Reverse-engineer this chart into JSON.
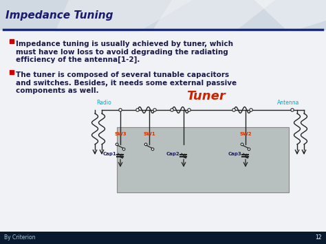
{
  "title": "Impedance Tuning",
  "title_color": "#1a1a6e",
  "title_fontsize": 11,
  "bullet_color": "#cc0000",
  "bullet_text_color": "#1a1a4a",
  "bullet_fontsize": 7.5,
  "bullet1": "Impedance tuning is usually achieved by tuner, which\nmust have low loss to avoid degrading the radiating\nefficiency of the antenna[1-2].",
  "bullet2": "The tuner is composed of several tunable capacitors\nand switches. Besides, it needs some external passive\ncomponents as well.",
  "tuner_label": "Tuner",
  "tuner_label_color": "#cc2200",
  "tuner_label_fontsize": 13,
  "radio_label": "Radio",
  "antenna_label": "Antenna",
  "radio_antenna_color": "#00aacc",
  "sw_labels": [
    "SW3",
    "SW1",
    "SW2"
  ],
  "sw_label_color": "#cc3300",
  "cap_labels": [
    "Cap1",
    "Cap2",
    "Cap3"
  ],
  "cap_label_color": "#1a1a6e",
  "bg_header": "#d8dfe8",
  "bg_slide": "#e8ecf0",
  "divider_color": "#1a2a6e",
  "footer_bg": "#0a1a2e",
  "footer_text": "By Criterion",
  "footer_page": "12",
  "circuit_box_color": "#b8bfbf",
  "line_color": "#222222",
  "white": "#ffffff"
}
